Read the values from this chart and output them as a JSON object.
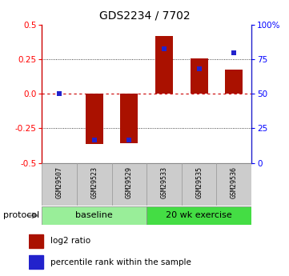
{
  "title": "GDS2234 / 7702",
  "samples": [
    "GSM29507",
    "GSM29523",
    "GSM29529",
    "GSM29533",
    "GSM29535",
    "GSM29536"
  ],
  "log2_ratio": [
    0.0,
    -0.365,
    -0.355,
    0.42,
    0.255,
    0.175
  ],
  "pct_rank": [
    0.5,
    0.165,
    0.165,
    0.825,
    0.68,
    0.795
  ],
  "groups": [
    {
      "label": "baseline",
      "indices": [
        0,
        1,
        2
      ],
      "color": "#99ee99"
    },
    {
      "label": "20 wk exercise",
      "indices": [
        3,
        4,
        5
      ],
      "color": "#44dd44"
    }
  ],
  "bar_color": "#aa1100",
  "pct_color": "#2222cc",
  "ylim": [
    -0.5,
    0.5
  ],
  "right_ylim": [
    0,
    100
  ],
  "yticks_left": [
    -0.5,
    -0.25,
    0.0,
    0.25,
    0.5
  ],
  "yticks_right": [
    0,
    25,
    50,
    75,
    100
  ],
  "hline_color": "#cc0000",
  "dot_hline_color": "#cc0000",
  "grid_color": "#111111",
  "background": "#ffffff",
  "protocol_label": "protocol",
  "legend_log2": "log2 ratio",
  "legend_pct": "percentile rank within the sample",
  "bar_width": 0.5,
  "sample_box_color": "#cccccc",
  "sample_box_edge": "#999999",
  "proto_edge": "#888888",
  "left_spine_color": "#cc0000",
  "right_spine_color": "#2222cc"
}
